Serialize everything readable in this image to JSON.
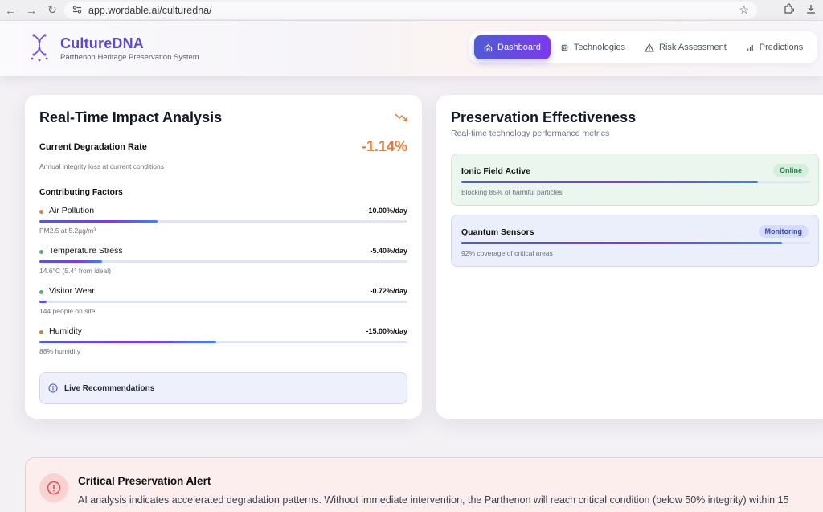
{
  "browser": {
    "url": "app.wordable.ai/culturedna/"
  },
  "brand": {
    "title": "CultureDNA",
    "subtitle": "Parthenon Heritage Preservation System"
  },
  "nav": {
    "items": [
      {
        "label": "Dashboard",
        "icon": "home-icon",
        "active": true
      },
      {
        "label": "Technologies",
        "icon": "cpu-icon",
        "active": false
      },
      {
        "label": "Risk Assessment",
        "icon": "warning-icon",
        "active": false
      },
      {
        "label": "Predictions",
        "icon": "bar-chart-icon",
        "active": false
      }
    ]
  },
  "impact": {
    "title": "Real-Time Impact Analysis",
    "rate_label": "Current Degradation Rate",
    "rate_value": "-1.14%",
    "rate_desc": "Annual integrity loss at current conditions",
    "factors_heading": "Contributing Factors",
    "factors": [
      {
        "name": "Air Pollution",
        "value": "-10.00%/day",
        "note": "PM2.5 at 5.2µg/m³",
        "fill": 0.32,
        "dot_color": "#e07b39"
      },
      {
        "name": "Temperature Stress",
        "value": "-5.40%/day",
        "note": "14.6°C (5.4° from ideal)",
        "fill": 0.17,
        "dot_color": "#4cb36b"
      },
      {
        "name": "Visitor Wear",
        "value": "-0.72%/day",
        "note": "144 people on site",
        "fill": 0.02,
        "dot_color": "#4cb36b"
      },
      {
        "name": "Humidity",
        "value": "-15.00%/day",
        "note": "88% humidity",
        "fill": 0.48,
        "dot_color": "#e07b39"
      }
    ],
    "recommendations_label": "Live Recommendations"
  },
  "effectiveness": {
    "title": "Preservation Effectiveness",
    "subtitle": "Real-time technology performance metrics",
    "metrics": [
      {
        "name": "Ionic Field Active",
        "badge": "Online",
        "note": "Blocking 85% of harmful particles",
        "fill": 0.85
      },
      {
        "name": "Quantum Sensors",
        "badge": "Monitoring",
        "note": "92% coverage of critical areas",
        "fill": 0.92
      }
    ]
  },
  "alert": {
    "title": "Critical Preservation Alert",
    "text": "AI analysis indicates accelerated degradation patterns. Without immediate intervention, the Parthenon will reach critical condition (below 50% integrity) within 15"
  },
  "colors": {
    "accent": "#5b4bc8",
    "warning": "#e07b39",
    "success": "#4cb36b",
    "danger": "#e05252"
  }
}
